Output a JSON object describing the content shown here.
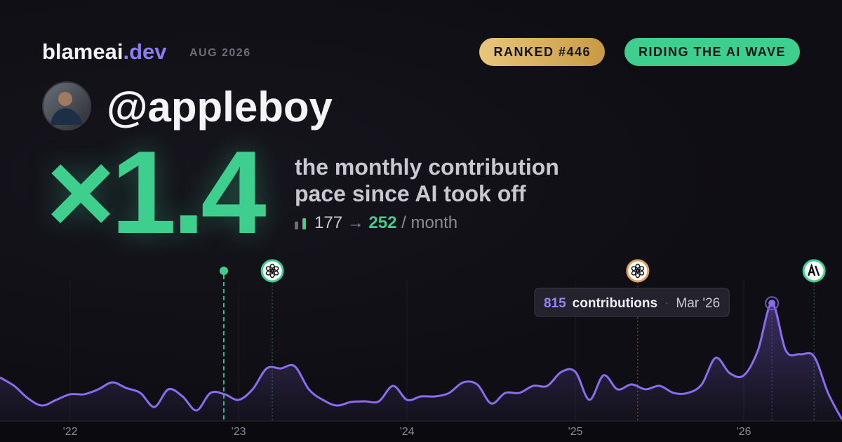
{
  "header": {
    "brand": "blameai",
    "brand_tld": ".dev",
    "date": "AUG 2026",
    "badges": [
      "RANKED #446",
      "RIDING THE AI WAVE"
    ]
  },
  "profile": {
    "handle": "@appleboy"
  },
  "headline": {
    "multiplier": "×1.4",
    "caption_lines": [
      "the monthly contribution",
      "pace since AI took off"
    ],
    "before": 177,
    "arrow": "→",
    "after": 252,
    "unit": "/ month"
  },
  "chart_data": {
    "type": "line",
    "color": "#8b6cf0",
    "x": [
      2021.583,
      2021.667,
      2021.75,
      2021.833,
      2021.917,
      2022,
      2022.083,
      2022.167,
      2022.25,
      2022.333,
      2022.417,
      2022.5,
      2022.583,
      2022.667,
      2022.75,
      2022.833,
      2022.917,
      2023,
      2023.083,
      2023.167,
      2023.25,
      2023.333,
      2023.417,
      2023.5,
      2023.583,
      2023.667,
      2023.75,
      2023.833,
      2023.917,
      2024,
      2024.083,
      2024.167,
      2024.25,
      2024.333,
      2024.417,
      2024.5,
      2024.583,
      2024.667,
      2024.75,
      2024.833,
      2024.917,
      2025,
      2025.083,
      2025.167,
      2025.25,
      2025.333,
      2025.417,
      2025.5,
      2025.583,
      2025.667,
      2025.75,
      2025.833,
      2025.917,
      2026,
      2026.083,
      2026.167,
      2026.25,
      2026.333,
      2026.417,
      2026.5,
      2026.583
    ],
    "values": [
      301,
      243,
      156,
      107,
      146,
      185,
      185,
      219,
      267,
      228,
      194,
      97,
      219,
      170,
      73,
      194,
      185,
      146,
      219,
      364,
      364,
      379,
      219,
      146,
      107,
      131,
      136,
      136,
      243,
      146,
      170,
      170,
      194,
      267,
      253,
      121,
      194,
      194,
      243,
      243,
      340,
      340,
      146,
      316,
      219,
      253,
      219,
      243,
      194,
      194,
      253,
      437,
      330,
      316,
      486,
      815,
      486,
      462,
      447,
      194,
      10
    ],
    "xlim": [
      2021.583,
      2026.583
    ],
    "ylim": [
      0,
      1200
    ],
    "xticks": [
      {
        "value": 2022,
        "label": "'22"
      },
      {
        "value": 2023,
        "label": "'23"
      },
      {
        "value": 2024,
        "label": "'24"
      },
      {
        "value": 2025,
        "label": "'25"
      },
      {
        "value": 2026,
        "label": "'26"
      }
    ],
    "grid": true,
    "events": [
      {
        "x": 2022.912,
        "icon": "dot",
        "color": "#3ecf8e"
      },
      {
        "x": 2023.2,
        "icon": "openai",
        "color": "#3ecf8e"
      },
      {
        "x": 2025.37,
        "icon": "openai",
        "color": "#e0a060"
      },
      {
        "x": 2026.417,
        "icon": "anthropic",
        "color": "#3ecf8e"
      }
    ],
    "tooltip": {
      "label": "contributions",
      "date": "Mar '26"
    }
  }
}
